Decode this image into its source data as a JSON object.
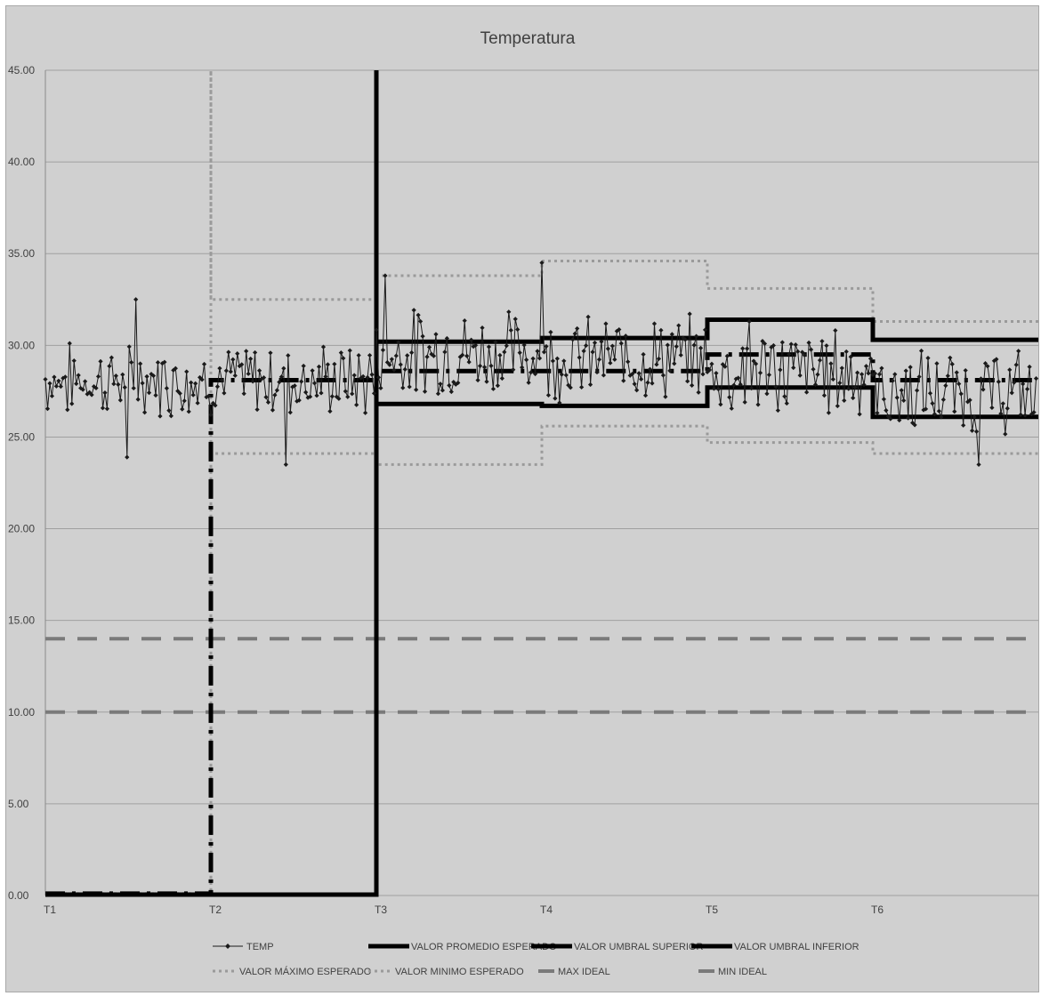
{
  "chart_data": {
    "type": "line",
    "title": "Temperatura",
    "y_ticks": [
      "0.00",
      "5.00",
      "10.00",
      "15.00",
      "20.00",
      "25.00",
      "30.00",
      "35.00",
      "40.00",
      "45.00"
    ],
    "ylim": [
      0,
      45
    ],
    "x_categories": [
      "T1",
      "T2",
      "T3",
      "T4",
      "T5",
      "T6"
    ],
    "xlim": [
      0,
      6
    ],
    "grid": "horizontal",
    "legend_position": "bottom",
    "series": [
      {
        "name": "TEMP",
        "style": "line-diamond",
        "color": "#1a1a1a",
        "seed": 7,
        "segments": [
          {
            "x0": 0.0,
            "x1": 1.0,
            "mean": 28.1,
            "amp": 1.6,
            "n": 75
          },
          {
            "x0": 1.0,
            "x1": 2.0,
            "mean": 28.1,
            "amp": 1.6,
            "n": 75
          },
          {
            "x0": 2.0,
            "x1": 3.0,
            "mean": 29.6,
            "amp": 1.9,
            "n": 75
          },
          {
            "x0": 3.0,
            "x1": 4.0,
            "mean": 29.3,
            "amp": 1.8,
            "n": 75
          },
          {
            "x0": 4.0,
            "x1": 5.0,
            "mean": 28.6,
            "amp": 2.0,
            "n": 75
          },
          {
            "x0": 5.0,
            "x1": 6.0,
            "mean": 27.4,
            "amp": 1.9,
            "n": 75
          }
        ],
        "highlights": [
          [
            0.55,
            32.5
          ],
          [
            2.06,
            33.8
          ],
          [
            3.0,
            34.5
          ],
          [
            4.25,
            31.3
          ],
          [
            0.5,
            23.9
          ],
          [
            1.46,
            23.5
          ],
          [
            5.64,
            23.5
          ]
        ]
      },
      {
        "name": "VALOR PROMEDIO ESPERADO",
        "style": "dash-dot",
        "color": "#000000",
        "points": [
          [
            0,
            0.1
          ],
          [
            1,
            0.1
          ],
          [
            1,
            28.1
          ],
          [
            2,
            28.1
          ],
          [
            2,
            28.6
          ],
          [
            4,
            28.6
          ],
          [
            4,
            29.5
          ],
          [
            5,
            29.5
          ],
          [
            5,
            28.1
          ],
          [
            6,
            28.1
          ]
        ]
      },
      {
        "name": "VALOR UMBRAL SUPERIOR",
        "style": "solid",
        "color": "#000000",
        "points": [
          [
            0,
            0.05
          ],
          [
            2,
            0.05
          ],
          [
            2,
            45
          ],
          [
            2.0,
            30.2
          ],
          [
            3,
            30.2
          ],
          [
            3,
            30.4
          ],
          [
            4,
            30.4
          ],
          [
            4,
            31.4
          ],
          [
            5,
            31.4
          ],
          [
            5,
            30.3
          ],
          [
            6,
            30.3
          ]
        ]
      },
      {
        "name": "VALOR UMBRAL INFERIOR",
        "style": "solid",
        "color": "#000000",
        "points": [
          [
            0,
            0.05
          ],
          [
            2,
            0.05
          ],
          [
            2,
            26.8
          ],
          [
            3,
            26.8
          ],
          [
            3,
            26.7
          ],
          [
            4,
            26.7
          ],
          [
            4,
            27.7
          ],
          [
            5,
            27.7
          ],
          [
            5,
            26.1
          ],
          [
            6,
            26.1
          ]
        ]
      },
      {
        "name": "VALOR MÁXIMO ESPERADO",
        "style": "dotted",
        "color": "#9a9a9a",
        "points": [
          [
            0,
            0.1
          ],
          [
            1,
            0.1
          ],
          [
            1,
            45
          ],
          [
            1,
            32.5
          ],
          [
            2,
            32.5
          ],
          [
            2,
            33.8
          ],
          [
            3,
            33.8
          ],
          [
            3,
            34.6
          ],
          [
            4,
            34.6
          ],
          [
            4,
            33.1
          ],
          [
            5,
            33.1
          ],
          [
            5,
            31.3
          ],
          [
            6,
            31.3
          ]
        ]
      },
      {
        "name": "VALOR MINIMO ESPERADO",
        "style": "dotted",
        "color": "#9a9a9a",
        "points": [
          [
            0,
            0.1
          ],
          [
            1,
            0.1
          ],
          [
            1,
            24.1
          ],
          [
            2,
            24.1
          ],
          [
            2,
            23.5
          ],
          [
            3,
            23.5
          ],
          [
            3,
            25.6
          ],
          [
            4,
            25.6
          ],
          [
            4,
            24.7
          ],
          [
            5,
            24.7
          ],
          [
            5,
            24.1
          ],
          [
            6,
            24.1
          ]
        ]
      },
      {
        "name": "MAX IDEAL",
        "style": "dashed",
        "color": "#7a7a7a",
        "points": [
          [
            0,
            14
          ],
          [
            6,
            14
          ]
        ]
      },
      {
        "name": "MIN IDEAL",
        "style": "dashed",
        "color": "#7a7a7a",
        "points": [
          [
            0,
            10
          ],
          [
            6,
            10
          ]
        ]
      }
    ]
  }
}
